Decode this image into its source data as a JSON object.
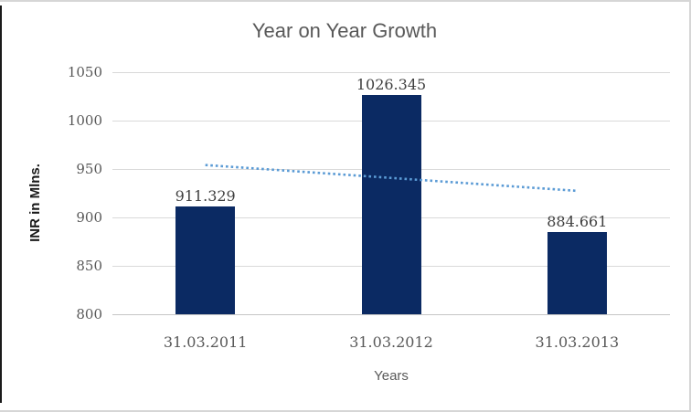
{
  "chart": {
    "title": "Year on Year Growth",
    "y_axis_title": "INR in Mlns.",
    "x_axis_title": "Years"
  },
  "chart_data": {
    "type": "bar",
    "title": "Year on Year Growth",
    "categories": [
      "31.03.2011",
      "31.03.2012",
      "31.03.2013"
    ],
    "values": [
      911.329,
      1026.345,
      884.661
    ],
    "data_labels": [
      "911.329",
      "1026.345",
      "884.661"
    ],
    "xlabel": "Years",
    "ylabel": "INR in Mlns.",
    "ylim": [
      800,
      1050
    ],
    "yticks": [
      800,
      850,
      900,
      950,
      1000,
      1050
    ],
    "grid": true,
    "legend": "none",
    "trendline": {
      "type": "linear",
      "style": "dotted"
    },
    "colors": {
      "bar": "#0b2a63",
      "trend": "#5b9bd5",
      "gridline": "#d9d9d9",
      "axis_line": "#c6c6c6",
      "title_text": "#595959",
      "tick_text": "#595959",
      "data_label_text": "#404040",
      "category_text": "#595959",
      "axis_title_text": "#1a1a1a",
      "frame_border": "#d6d6d6",
      "left_edge": "#1a1a1a"
    }
  }
}
